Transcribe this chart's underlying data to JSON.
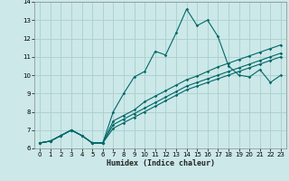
{
  "xlabel": "Humidex (Indice chaleur)",
  "xlim": [
    -0.5,
    23.5
  ],
  "ylim": [
    6,
    14
  ],
  "yticks": [
    6,
    7,
    8,
    9,
    10,
    11,
    12,
    13,
    14
  ],
  "xticks": [
    0,
    1,
    2,
    3,
    4,
    5,
    6,
    7,
    8,
    9,
    10,
    11,
    12,
    13,
    14,
    15,
    16,
    17,
    18,
    19,
    20,
    21,
    22,
    23
  ],
  "background_color": "#cce8e8",
  "grid_color": "#aacece",
  "line_color": "#006868",
  "lines": [
    [
      6.3,
      6.4,
      6.7,
      7.0,
      6.7,
      6.3,
      6.3,
      8.0,
      9.0,
      9.9,
      10.2,
      11.3,
      11.1,
      12.3,
      13.6,
      12.7,
      13.0,
      12.1,
      10.5,
      10.0,
      9.9,
      10.3,
      9.6,
      10.0
    ],
    [
      6.3,
      6.4,
      6.7,
      7.0,
      6.7,
      6.3,
      6.3,
      7.5,
      7.8,
      8.1,
      8.55,
      8.85,
      9.15,
      9.45,
      9.75,
      9.95,
      10.2,
      10.45,
      10.65,
      10.85,
      11.05,
      11.25,
      11.45,
      11.65
    ],
    [
      6.3,
      6.4,
      6.7,
      7.0,
      6.7,
      6.3,
      6.3,
      7.3,
      7.6,
      7.9,
      8.2,
      8.5,
      8.8,
      9.1,
      9.4,
      9.6,
      9.8,
      10.0,
      10.2,
      10.4,
      10.6,
      10.8,
      11.0,
      11.2
    ],
    [
      6.3,
      6.4,
      6.7,
      7.0,
      6.7,
      6.3,
      6.3,
      7.1,
      7.4,
      7.7,
      8.0,
      8.3,
      8.6,
      8.9,
      9.2,
      9.4,
      9.6,
      9.8,
      10.0,
      10.2,
      10.4,
      10.6,
      10.8,
      11.0
    ]
  ]
}
